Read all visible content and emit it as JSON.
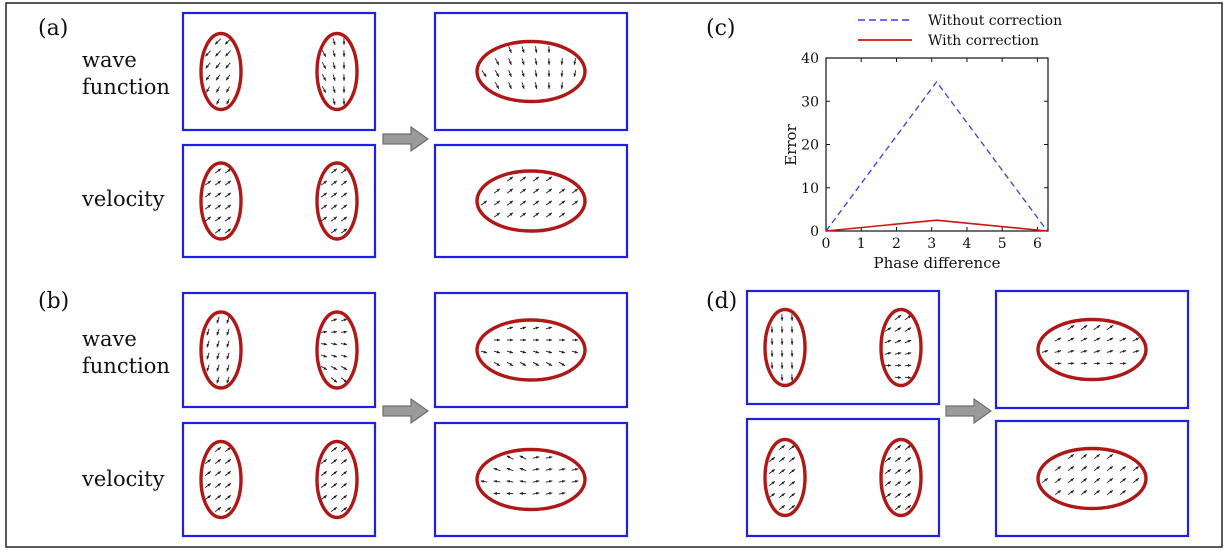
{
  "panels": {
    "a": "(a)",
    "b": "(b)",
    "c": "(c)",
    "d": "(d)"
  },
  "row_labels": {
    "wave_line1": "wave",
    "wave_line2": "function",
    "velocity": "velocity"
  },
  "colors": {
    "frame": "#1f1fe6",
    "ellipse": "#b01818",
    "arrow_fill": "#9a9a9a",
    "vector": "#222222",
    "series_without": "#3b3bf0",
    "series_with": "#cc1414"
  },
  "chart_data": {
    "type": "line",
    "title": "",
    "xlabel": "Phase difference",
    "ylabel": "Error",
    "xlim": [
      0,
      6.3
    ],
    "ylim": [
      0,
      40
    ],
    "xticks": [
      0,
      1,
      2,
      3,
      4,
      5,
      6
    ],
    "yticks": [
      0,
      10,
      20,
      30,
      40
    ],
    "legend_position": "top",
    "series": [
      {
        "name": "Without correction",
        "style": "dashed",
        "x": [
          0,
          3.14,
          6.28
        ],
        "y": [
          0,
          34.5,
          0
        ]
      },
      {
        "name": "With correction",
        "style": "solid",
        "x": [
          0,
          3.14,
          6.28
        ],
        "y": [
          0,
          2.5,
          0
        ]
      }
    ]
  }
}
